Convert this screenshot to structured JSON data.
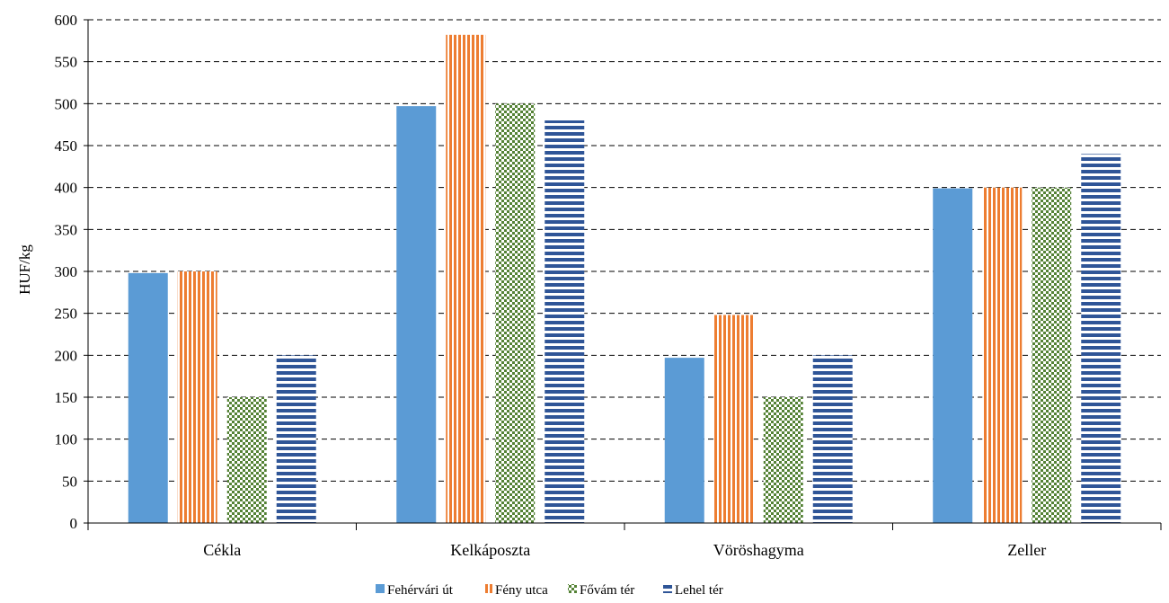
{
  "chart_data": {
    "type": "bar",
    "title": "",
    "xlabel": "",
    "ylabel": "HUF/kg",
    "ylim": [
      0,
      600
    ],
    "yticks": [
      0,
      50,
      100,
      150,
      200,
      250,
      300,
      350,
      400,
      450,
      500,
      550,
      600
    ],
    "grid": "horizontal dashed",
    "legend_position": "bottom",
    "categories": [
      "Cékla",
      "Kelkáposzta",
      "Vöröshagyma",
      "Zeller"
    ],
    "series": [
      {
        "name": "Fehérvári út",
        "values": [
          298,
          497,
          197,
          399
        ],
        "color": "#5b9bd5",
        "pattern": "solid"
      },
      {
        "name": "Fény utca",
        "values": [
          300,
          582,
          248,
          400
        ],
        "color": "#ed7d31",
        "pattern": "vertical-stripes"
      },
      {
        "name": "Fővám tér",
        "values": [
          150,
          500,
          150,
          400
        ],
        "color": "#548235",
        "pattern": "checker"
      },
      {
        "name": "Lehel tér",
        "values": [
          200,
          480,
          200,
          440
        ],
        "color": "#2f5597",
        "pattern": "horizontal-stripes"
      }
    ]
  }
}
